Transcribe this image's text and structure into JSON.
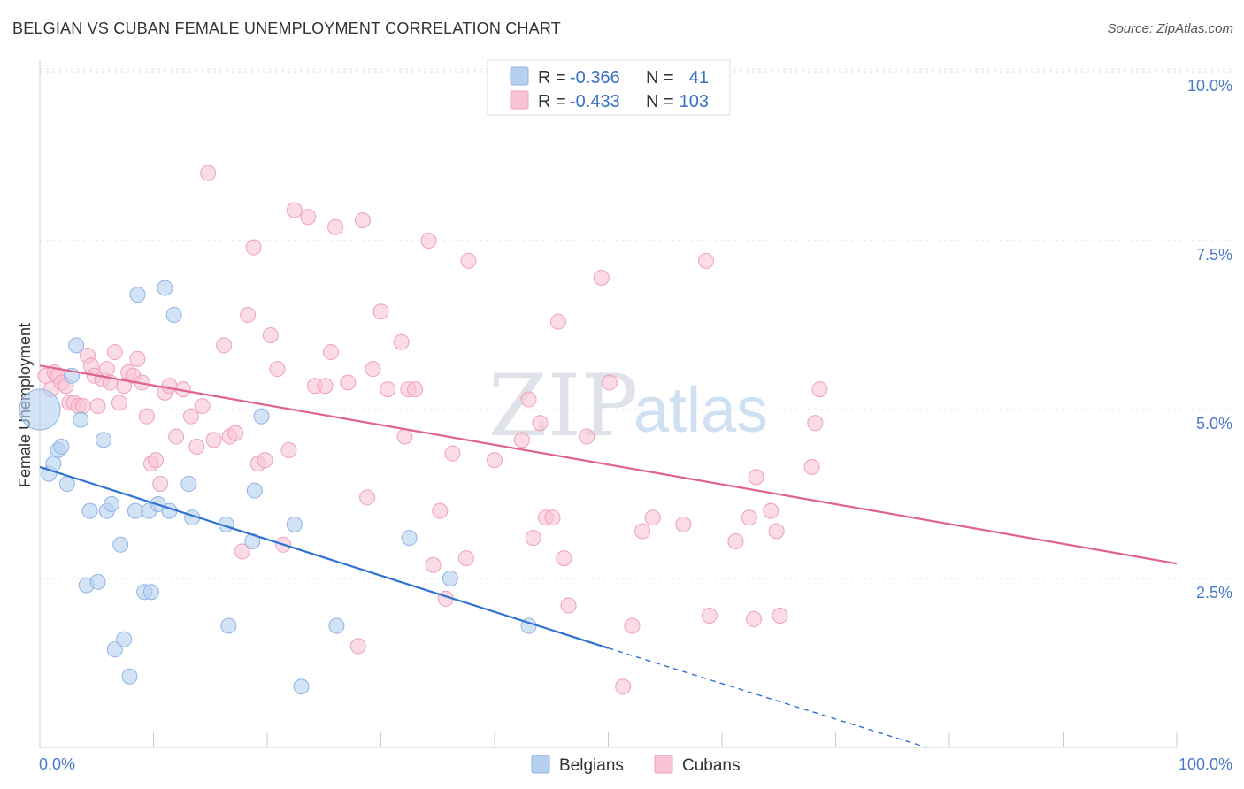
{
  "title": "BELGIAN VS CUBAN FEMALE UNEMPLOYMENT CORRELATION CHART",
  "source": "Source: ZipAtlas.com",
  "watermark": {
    "zip": "ZIP",
    "atlas": "atlas"
  },
  "legend": {
    "rows": [
      {
        "r_label": "R =",
        "r_value": "-0.366",
        "n_label": "N =",
        "n_value": "41"
      },
      {
        "r_label": "R =",
        "r_value": "-0.433",
        "n_label": "N =",
        "n_value": "103"
      }
    ]
  },
  "bottom_legend": [
    "Belgians",
    "Cubans"
  ],
  "colors": {
    "belgians_fill": "#b6d0f0",
    "belgians_stroke": "#8fb3e4",
    "belgians_line": "#2f72d0",
    "cubans_fill": "#f8c3d3",
    "cubans_stroke": "#efa0ba",
    "cubans_line": "#e0628e",
    "grid": "#dddddd",
    "tick_text": "#4a7ac8"
  },
  "chart_data": {
    "type": "scatter",
    "title": "BELGIAN VS CUBAN FEMALE UNEMPLOYMENT CORRELATION CHART",
    "xlabel": "",
    "ylabel": "Female Unemployment",
    "xlim": [
      0,
      100
    ],
    "ylim": [
      0,
      10.5
    ],
    "x_tick_labels": [
      "0.0%",
      "100.0%"
    ],
    "y_ticks": [
      2.5,
      5.0,
      7.5,
      10.0
    ],
    "y_tick_labels": [
      "2.5%",
      "5.0%",
      "7.5%",
      "10.0%"
    ],
    "series": [
      {
        "name": "Belgians",
        "r": -0.366,
        "n": 41,
        "trend": {
          "x0": 0,
          "y0": 4.15,
          "x1": 50,
          "y1": 1.47,
          "dash_to_x": 78,
          "dash_to_y": 0.0
        },
        "points": [
          [
            0,
            5.0
          ],
          [
            0.8,
            4.05
          ],
          [
            1.2,
            4.2
          ],
          [
            1.6,
            4.4
          ],
          [
            1.9,
            4.45
          ],
          [
            2.4,
            3.9
          ],
          [
            2.8,
            5.5
          ],
          [
            3.2,
            5.95
          ],
          [
            3.6,
            4.85
          ],
          [
            4.1,
            2.4
          ],
          [
            4.4,
            3.5
          ],
          [
            5.1,
            2.45
          ],
          [
            5.6,
            4.55
          ],
          [
            5.9,
            3.5
          ],
          [
            6.3,
            3.6
          ],
          [
            6.6,
            1.45
          ],
          [
            7.1,
            3.0
          ],
          [
            7.4,
            1.6
          ],
          [
            7.9,
            1.05
          ],
          [
            8.4,
            3.5
          ],
          [
            8.6,
            6.7
          ],
          [
            9.2,
            2.3
          ],
          [
            9.6,
            3.5
          ],
          [
            9.8,
            2.3
          ],
          [
            10.4,
            3.6
          ],
          [
            11.0,
            6.8
          ],
          [
            11.4,
            3.5
          ],
          [
            11.8,
            6.4
          ],
          [
            13.1,
            3.9
          ],
          [
            13.4,
            3.4
          ],
          [
            16.4,
            3.3
          ],
          [
            16.6,
            1.8
          ],
          [
            18.7,
            3.05
          ],
          [
            18.9,
            3.8
          ],
          [
            19.5,
            4.9
          ],
          [
            22.4,
            3.3
          ],
          [
            23.0,
            0.9
          ],
          [
            26.1,
            1.8
          ],
          [
            32.5,
            3.1
          ],
          [
            36.1,
            2.5
          ],
          [
            43.0,
            1.8
          ]
        ]
      },
      {
        "name": "Cubans",
        "r": -0.433,
        "n": 103,
        "trend": {
          "x0": 0,
          "y0": 5.65,
          "x1": 100,
          "y1": 2.72
        },
        "points": [
          [
            0.5,
            5.5
          ],
          [
            1.0,
            5.3
          ],
          [
            1.3,
            5.55
          ],
          [
            1.6,
            5.5
          ],
          [
            1.9,
            5.4
          ],
          [
            2.3,
            5.35
          ],
          [
            2.6,
            5.1
          ],
          [
            3.0,
            5.1
          ],
          [
            3.4,
            5.05
          ],
          [
            3.8,
            5.05
          ],
          [
            4.2,
            5.8
          ],
          [
            4.5,
            5.65
          ],
          [
            4.8,
            5.5
          ],
          [
            5.1,
            5.05
          ],
          [
            5.5,
            5.45
          ],
          [
            5.9,
            5.6
          ],
          [
            6.2,
            5.4
          ],
          [
            6.6,
            5.85
          ],
          [
            7.0,
            5.1
          ],
          [
            7.4,
            5.35
          ],
          [
            7.8,
            5.55
          ],
          [
            8.2,
            5.5
          ],
          [
            8.6,
            5.75
          ],
          [
            9.0,
            5.4
          ],
          [
            9.4,
            4.9
          ],
          [
            9.8,
            4.2
          ],
          [
            10.2,
            4.25
          ],
          [
            10.6,
            3.9
          ],
          [
            11.0,
            5.25
          ],
          [
            11.4,
            5.35
          ],
          [
            12.0,
            4.6
          ],
          [
            12.6,
            5.3
          ],
          [
            13.3,
            4.9
          ],
          [
            13.8,
            4.45
          ],
          [
            14.3,
            5.05
          ],
          [
            14.8,
            8.5
          ],
          [
            15.3,
            4.55
          ],
          [
            16.2,
            5.95
          ],
          [
            16.7,
            4.6
          ],
          [
            17.2,
            4.65
          ],
          [
            17.8,
            2.9
          ],
          [
            18.3,
            6.4
          ],
          [
            18.8,
            7.4
          ],
          [
            19.2,
            4.2
          ],
          [
            19.8,
            4.25
          ],
          [
            20.3,
            6.1
          ],
          [
            20.9,
            5.6
          ],
          [
            21.4,
            3.0
          ],
          [
            21.9,
            4.4
          ],
          [
            22.4,
            7.95
          ],
          [
            23.6,
            7.85
          ],
          [
            24.2,
            5.35
          ],
          [
            25.1,
            5.35
          ],
          [
            25.6,
            5.85
          ],
          [
            26.0,
            7.7
          ],
          [
            27.1,
            5.4
          ],
          [
            28.0,
            1.5
          ],
          [
            28.4,
            7.8
          ],
          [
            28.8,
            3.7
          ],
          [
            29.3,
            5.6
          ],
          [
            30.0,
            6.45
          ],
          [
            30.6,
            5.3
          ],
          [
            31.8,
            6.0
          ],
          [
            32.1,
            4.6
          ],
          [
            32.4,
            5.3
          ],
          [
            33.0,
            5.3
          ],
          [
            34.2,
            7.5
          ],
          [
            34.6,
            2.7
          ],
          [
            35.2,
            3.5
          ],
          [
            35.7,
            2.2
          ],
          [
            36.3,
            4.35
          ],
          [
            37.5,
            2.8
          ],
          [
            37.7,
            7.2
          ],
          [
            40.0,
            4.25
          ],
          [
            42.4,
            4.55
          ],
          [
            43.0,
            5.15
          ],
          [
            43.4,
            3.1
          ],
          [
            44.0,
            4.8
          ],
          [
            44.5,
            3.4
          ],
          [
            45.1,
            3.4
          ],
          [
            45.6,
            6.3
          ],
          [
            46.1,
            2.8
          ],
          [
            46.5,
            2.1
          ],
          [
            48.1,
            4.6
          ],
          [
            49.4,
            6.95
          ],
          [
            50.1,
            5.4
          ],
          [
            51.3,
            0.9
          ],
          [
            52.1,
            1.8
          ],
          [
            53.0,
            3.2
          ],
          [
            53.9,
            3.4
          ],
          [
            56.6,
            3.3
          ],
          [
            58.6,
            7.2
          ],
          [
            58.9,
            1.95
          ],
          [
            61.2,
            3.05
          ],
          [
            62.4,
            3.4
          ],
          [
            62.8,
            1.9
          ],
          [
            63.0,
            4.0
          ],
          [
            64.3,
            3.5
          ],
          [
            64.8,
            3.2
          ],
          [
            65.1,
            1.95
          ],
          [
            67.9,
            4.15
          ],
          [
            68.2,
            4.8
          ],
          [
            68.6,
            5.3
          ]
        ]
      }
    ]
  }
}
